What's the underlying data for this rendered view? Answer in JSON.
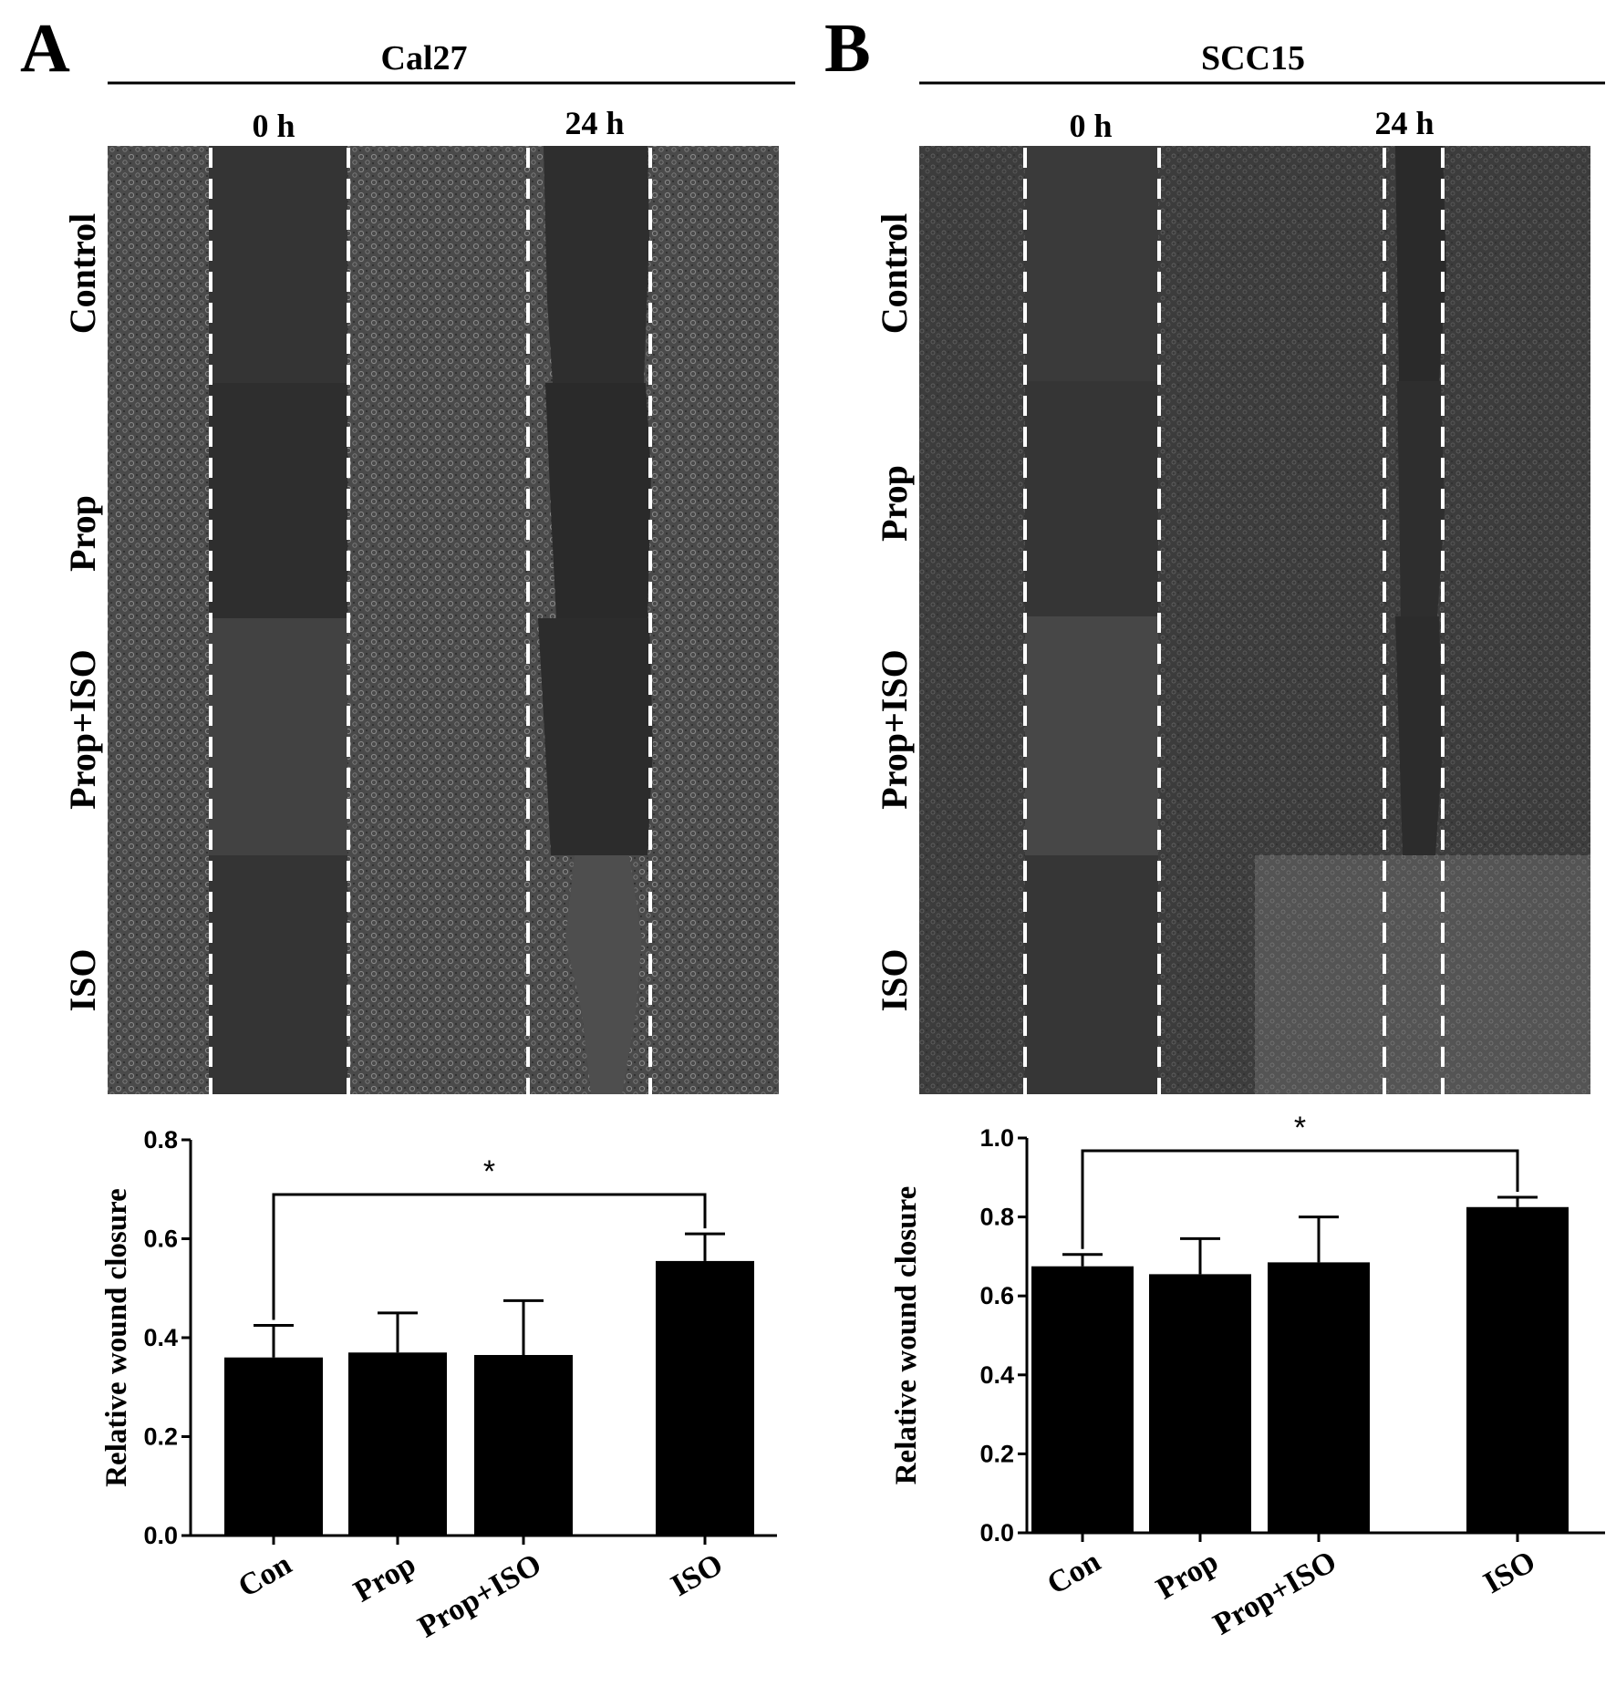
{
  "panels": [
    {
      "letter": "A",
      "title": "Cal27",
      "times": [
        "0 h",
        "24 h"
      ],
      "rows": [
        "Control",
        "Prop",
        "Prop+ISO",
        "ISO"
      ]
    },
    {
      "letter": "B",
      "title": "SCC15",
      "times": [
        "0 h",
        "24 h"
      ],
      "rows": [
        "Control",
        "Prop",
        "Prop+ISO",
        "ISO"
      ]
    }
  ],
  "chart_data": [
    {
      "type": "bar",
      "categories": [
        "Con",
        "Prop",
        "Prop+ISO",
        "ISO"
      ],
      "values": [
        0.36,
        0.37,
        0.365,
        0.555
      ],
      "errors": [
        0.065,
        0.08,
        0.11,
        0.055
      ],
      "ylabel": "Relative wound closure",
      "ylim": [
        0,
        0.8
      ],
      "yticks": [
        "0.0",
        "0.2",
        "0.4",
        "0.6",
        "0.8"
      ],
      "significance": {
        "from": "Con",
        "to": "ISO",
        "label": "*"
      },
      "bar_color": "#000000"
    },
    {
      "type": "bar",
      "categories": [
        "Con",
        "Prop",
        "Prop+ISO",
        "ISO"
      ],
      "values": [
        0.675,
        0.655,
        0.685,
        0.825
      ],
      "errors": [
        0.03,
        0.09,
        0.115,
        0.025
      ],
      "ylabel": "Relative wound closure",
      "ylim": [
        0,
        1.0
      ],
      "yticks": [
        "0.0",
        "0.2",
        "0.4",
        "0.6",
        "0.8",
        "1.0"
      ],
      "significance": {
        "from": "Con",
        "to": "ISO",
        "label": "*"
      },
      "bar_color": "#000000"
    }
  ]
}
